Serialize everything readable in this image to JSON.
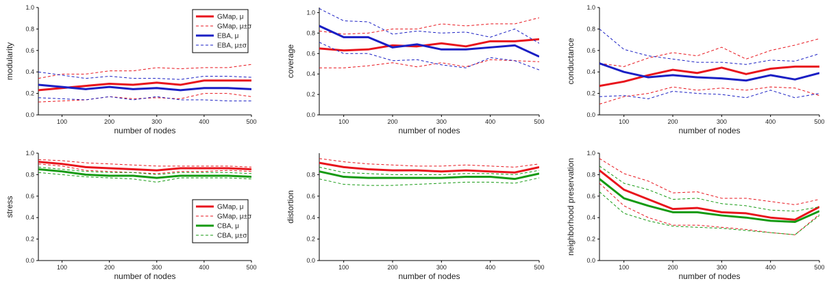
{
  "colors": {
    "gmap": "#e8141c",
    "eba": "#1a1fc4",
    "cba": "#159a12"
  },
  "chart_data": [
    {
      "type": "line",
      "ylabel": "modularity",
      "xlabel": "number of nodes",
      "xlim": [
        50,
        500
      ],
      "ylim": [
        0,
        1
      ],
      "xticks": [
        100,
        200,
        300,
        400,
        500
      ],
      "yticks": [
        0.0,
        0.2,
        0.4,
        0.6,
        0.8,
        1.0
      ],
      "grid": false,
      "legend": "top-right",
      "x": [
        50,
        100,
        150,
        200,
        250,
        300,
        350,
        400,
        450,
        500
      ],
      "series": [
        {
          "name": "GMap, μ",
          "color_key": "gmap",
          "style": "solid",
          "values": [
            0.23,
            0.25,
            0.27,
            0.29,
            0.28,
            0.3,
            0.28,
            0.32,
            0.32,
            0.32
          ]
        },
        {
          "name": "GMap, μ±σ",
          "color_key": "gmap",
          "style": "dashed",
          "upper": [
            0.34,
            0.38,
            0.38,
            0.41,
            0.41,
            0.44,
            0.43,
            0.44,
            0.44,
            0.47
          ],
          "lower": [
            0.12,
            0.13,
            0.14,
            0.17,
            0.15,
            0.16,
            0.15,
            0.2,
            0.2,
            0.17
          ]
        },
        {
          "name": "EBA, μ",
          "color_key": "eba",
          "style": "solid",
          "values": [
            0.28,
            0.26,
            0.24,
            0.26,
            0.24,
            0.25,
            0.23,
            0.25,
            0.25,
            0.24
          ]
        },
        {
          "name": "EBA, μ±σ",
          "color_key": "eba",
          "style": "dashed",
          "upper": [
            0.4,
            0.37,
            0.34,
            0.36,
            0.34,
            0.34,
            0.33,
            0.36,
            0.36,
            0.35
          ],
          "lower": [
            0.16,
            0.15,
            0.14,
            0.17,
            0.14,
            0.17,
            0.14,
            0.14,
            0.13,
            0.13
          ]
        }
      ]
    },
    {
      "type": "line",
      "ylabel": "coverage",
      "xlabel": "number of nodes",
      "xlim": [
        50,
        500
      ],
      "ylim": [
        0,
        1.05
      ],
      "xticks": [
        100,
        200,
        300,
        400,
        500
      ],
      "yticks": [
        0.0,
        0.2,
        0.4,
        0.6,
        0.8,
        1.0
      ],
      "grid": false,
      "x": [
        50,
        100,
        150,
        200,
        250,
        300,
        350,
        400,
        450,
        500
      ],
      "series": [
        {
          "color_key": "gmap",
          "style": "solid",
          "values": [
            0.65,
            0.63,
            0.64,
            0.68,
            0.67,
            0.7,
            0.67,
            0.72,
            0.72,
            0.74
          ]
        },
        {
          "color_key": "gmap",
          "style": "dashed",
          "upper": [
            0.82,
            0.79,
            0.8,
            0.84,
            0.84,
            0.89,
            0.87,
            0.89,
            0.89,
            0.95
          ],
          "lower": [
            0.46,
            0.46,
            0.48,
            0.51,
            0.47,
            0.51,
            0.47,
            0.54,
            0.53,
            0.52
          ]
        },
        {
          "color_key": "eba",
          "style": "solid",
          "values": [
            0.87,
            0.76,
            0.76,
            0.66,
            0.69,
            0.64,
            0.64,
            0.66,
            0.68,
            0.57
          ]
        },
        {
          "color_key": "eba",
          "style": "dashed",
          "upper": [
            1.04,
            0.92,
            0.91,
            0.79,
            0.82,
            0.8,
            0.81,
            0.76,
            0.84,
            0.7
          ],
          "lower": [
            0.71,
            0.6,
            0.6,
            0.53,
            0.54,
            0.49,
            0.46,
            0.56,
            0.53,
            0.44
          ]
        }
      ]
    },
    {
      "type": "line",
      "ylabel": "conductance",
      "xlabel": "number of nodes",
      "xlim": [
        50,
        500
      ],
      "ylim": [
        0,
        1
      ],
      "xticks": [
        100,
        200,
        300,
        400,
        500
      ],
      "yticks": [
        0.0,
        0.2,
        0.4,
        0.6,
        0.8,
        1.0
      ],
      "grid": false,
      "x": [
        50,
        100,
        150,
        200,
        250,
        300,
        350,
        400,
        450,
        500
      ],
      "series": [
        {
          "color_key": "gmap",
          "style": "solid",
          "values": [
            0.27,
            0.31,
            0.37,
            0.42,
            0.39,
            0.44,
            0.38,
            0.43,
            0.45,
            0.45
          ]
        },
        {
          "color_key": "gmap",
          "style": "dashed",
          "upper": [
            0.48,
            0.45,
            0.53,
            0.58,
            0.55,
            0.63,
            0.52,
            0.6,
            0.65,
            0.71
          ],
          "lower": [
            0.1,
            0.17,
            0.2,
            0.26,
            0.23,
            0.25,
            0.23,
            0.26,
            0.25,
            0.18
          ]
        },
        {
          "color_key": "eba",
          "style": "solid",
          "values": [
            0.48,
            0.4,
            0.35,
            0.37,
            0.35,
            0.34,
            0.32,
            0.37,
            0.33,
            0.39
          ]
        },
        {
          "color_key": "eba",
          "style": "dashed",
          "upper": [
            0.8,
            0.61,
            0.55,
            0.52,
            0.49,
            0.49,
            0.47,
            0.51,
            0.5,
            0.57
          ],
          "lower": [
            0.17,
            0.18,
            0.15,
            0.22,
            0.2,
            0.19,
            0.16,
            0.23,
            0.16,
            0.2
          ]
        }
      ]
    },
    {
      "type": "line",
      "ylabel": "stress",
      "xlabel": "number of nodes",
      "xlim": [
        50,
        500
      ],
      "ylim": [
        0,
        1
      ],
      "xticks": [
        100,
        200,
        300,
        400,
        500
      ],
      "yticks": [
        0.0,
        0.2,
        0.4,
        0.6,
        0.8,
        1.0
      ],
      "grid": false,
      "legend": "bottom-right",
      "x": [
        50,
        100,
        150,
        200,
        250,
        300,
        350,
        400,
        450,
        500
      ],
      "series": [
        {
          "name": "GMap, μ",
          "color_key": "gmap",
          "style": "solid",
          "values": [
            0.92,
            0.9,
            0.87,
            0.86,
            0.85,
            0.84,
            0.86,
            0.86,
            0.86,
            0.85
          ]
        },
        {
          "name": "GMap, μ±σ",
          "color_key": "gmap",
          "style": "dashed",
          "upper": [
            0.94,
            0.93,
            0.91,
            0.9,
            0.89,
            0.88,
            0.88,
            0.88,
            0.88,
            0.87
          ],
          "lower": [
            0.9,
            0.88,
            0.84,
            0.83,
            0.82,
            0.81,
            0.83,
            0.83,
            0.84,
            0.83
          ]
        },
        {
          "name": "CBA, μ",
          "color_key": "cba",
          "style": "solid",
          "values": [
            0.85,
            0.83,
            0.8,
            0.79,
            0.79,
            0.77,
            0.79,
            0.79,
            0.79,
            0.78
          ]
        },
        {
          "name": "CBA, μ±σ",
          "color_key": "cba",
          "style": "dashed",
          "upper": [
            0.87,
            0.85,
            0.83,
            0.82,
            0.82,
            0.8,
            0.82,
            0.82,
            0.82,
            0.81
          ],
          "lower": [
            0.82,
            0.8,
            0.78,
            0.77,
            0.76,
            0.73,
            0.77,
            0.77,
            0.77,
            0.76
          ]
        }
      ]
    },
    {
      "type": "line",
      "ylabel": "distortion",
      "xlabel": "number of nodes",
      "xlim": [
        50,
        500
      ],
      "ylim": [
        0,
        1
      ],
      "xticks": [
        100,
        200,
        300,
        400,
        500
      ],
      "yticks": [
        0.0,
        0.2,
        0.4,
        0.6,
        0.8
      ],
      "grid": false,
      "x": [
        50,
        100,
        150,
        200,
        250,
        300,
        350,
        400,
        450,
        500
      ],
      "series": [
        {
          "color_key": "gmap",
          "style": "solid",
          "values": [
            0.91,
            0.87,
            0.85,
            0.84,
            0.84,
            0.83,
            0.84,
            0.83,
            0.82,
            0.87
          ]
        },
        {
          "color_key": "gmap",
          "style": "dashed",
          "upper": [
            0.95,
            0.92,
            0.9,
            0.89,
            0.88,
            0.88,
            0.89,
            0.88,
            0.87,
            0.9
          ]
        },
        {
          "color_key": "cba",
          "style": "solid",
          "values": [
            0.83,
            0.78,
            0.77,
            0.77,
            0.77,
            0.77,
            0.78,
            0.78,
            0.76,
            0.81
          ]
        },
        {
          "color_key": "cba",
          "style": "dashed",
          "upper": [
            0.87,
            0.82,
            0.81,
            0.8,
            0.8,
            0.8,
            0.81,
            0.81,
            0.8,
            0.84
          ],
          "lower": [
            0.76,
            0.71,
            0.7,
            0.7,
            0.71,
            0.72,
            0.73,
            0.73,
            0.72,
            0.77
          ]
        }
      ]
    },
    {
      "type": "line",
      "ylabel": "neighborhood preservation",
      "xlabel": "number of nodes",
      "xlim": [
        50,
        500
      ],
      "ylim": [
        0,
        1
      ],
      "xticks": [
        100,
        200,
        300,
        400,
        500
      ],
      "yticks": [
        0.0,
        0.2,
        0.4,
        0.6,
        0.8,
        1.0
      ],
      "grid": false,
      "x": [
        50,
        100,
        150,
        200,
        250,
        300,
        350,
        400,
        450,
        500
      ],
      "series": [
        {
          "color_key": "gmap",
          "style": "solid",
          "values": [
            0.84,
            0.66,
            0.57,
            0.48,
            0.49,
            0.45,
            0.44,
            0.4,
            0.38,
            0.5
          ]
        },
        {
          "color_key": "gmap",
          "style": "dashed",
          "upper": [
            0.95,
            0.81,
            0.74,
            0.63,
            0.64,
            0.58,
            0.58,
            0.55,
            0.52,
            0.57
          ],
          "lower": [
            0.72,
            0.51,
            0.4,
            0.33,
            0.33,
            0.31,
            0.29,
            0.26,
            0.24,
            0.43
          ]
        },
        {
          "color_key": "cba",
          "style": "solid",
          "values": [
            0.76,
            0.58,
            0.51,
            0.45,
            0.45,
            0.42,
            0.4,
            0.37,
            0.36,
            0.46
          ]
        },
        {
          "color_key": "cba",
          "style": "dashed",
          "upper": [
            0.88,
            0.72,
            0.66,
            0.57,
            0.58,
            0.53,
            0.51,
            0.47,
            0.46,
            0.5
          ],
          "lower": [
            0.64,
            0.44,
            0.37,
            0.32,
            0.31,
            0.3,
            0.28,
            0.26,
            0.24,
            0.42
          ]
        }
      ]
    }
  ]
}
